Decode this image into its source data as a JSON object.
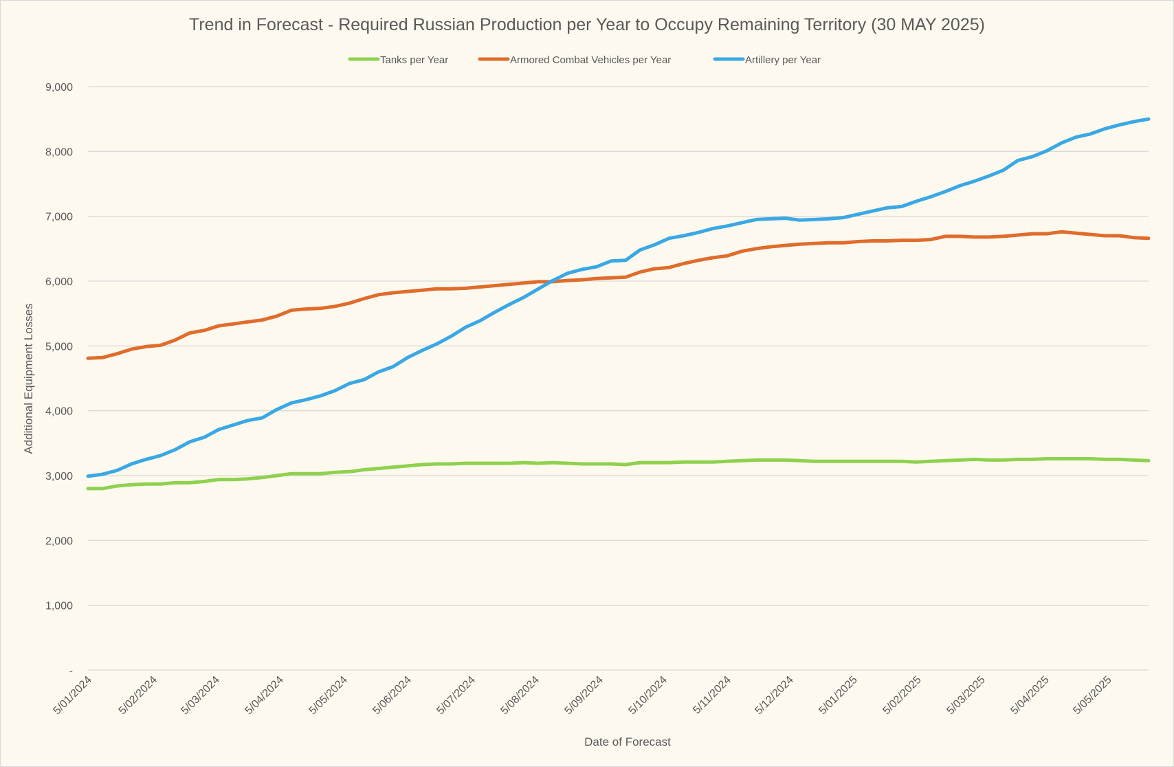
{
  "chart_data": {
    "type": "line",
    "title": "Trend in Forecast - Required Russian Production per Year to Occupy Remaining Territory (30 MAY 2025)",
    "xlabel": "Date of Forecast",
    "ylabel": "Additional Equipment Losses",
    "ylim": [
      0,
      9000
    ],
    "y_ticks": [
      0,
      1000,
      2000,
      3000,
      4000,
      5000,
      6000,
      7000,
      8000,
      9000
    ],
    "y_tick_labels": [
      "-",
      "1,000",
      "2,000",
      "3,000",
      "4,000",
      "5,000",
      "6,000",
      "7,000",
      "8,000",
      "9,000"
    ],
    "grid": true,
    "legend_position": "top-center",
    "point_count": 74,
    "x_tick_labels": [
      {
        "index": 0,
        "label": "5/01/2024"
      },
      {
        "index": 4.5,
        "label": "5/02/2024"
      },
      {
        "index": 8.8,
        "label": "5/03/2024"
      },
      {
        "index": 13.2,
        "label": "5/04/2024"
      },
      {
        "index": 17.6,
        "label": "5/05/2024"
      },
      {
        "index": 22,
        "label": "5/06/2024"
      },
      {
        "index": 26.4,
        "label": "5/07/2024"
      },
      {
        "index": 30.8,
        "label": "5/08/2024"
      },
      {
        "index": 35.2,
        "label": "5/09/2024"
      },
      {
        "index": 39.6,
        "label": "5/10/2024"
      },
      {
        "index": 44,
        "label": "5/11/2024"
      },
      {
        "index": 48.3,
        "label": "5/12/2024"
      },
      {
        "index": 52.7,
        "label": "5/01/2025"
      },
      {
        "index": 57.1,
        "label": "5/02/2025"
      },
      {
        "index": 61.5,
        "label": "5/03/2025"
      },
      {
        "index": 65.9,
        "label": "5/04/2025"
      },
      {
        "index": 70.2,
        "label": "5/05/2025"
      }
    ],
    "series": [
      {
        "name": "Tanks per Year",
        "color": "#8fd14f",
        "values": [
          2800,
          2800,
          2840,
          2860,
          2870,
          2870,
          2890,
          2890,
          2910,
          2940,
          2940,
          2950,
          2970,
          3000,
          3030,
          3030,
          3030,
          3050,
          3060,
          3090,
          3110,
          3130,
          3150,
          3170,
          3180,
          3180,
          3190,
          3190,
          3190,
          3190,
          3200,
          3190,
          3200,
          3190,
          3180,
          3180,
          3180,
          3170,
          3200,
          3200,
          3200,
          3210,
          3210,
          3210,
          3220,
          3230,
          3240,
          3240,
          3240,
          3230,
          3220,
          3220,
          3220,
          3220,
          3220,
          3220,
          3220,
          3210,
          3220,
          3230,
          3240,
          3250,
          3240,
          3240,
          3250,
          3250,
          3260,
          3260,
          3260,
          3260,
          3250,
          3250,
          3240,
          3230
        ]
      },
      {
        "name": "Armored Combat Vehicles per Year",
        "color": "#e06c2c",
        "values": [
          4810,
          4820,
          4880,
          4950,
          4990,
          5010,
          5090,
          5200,
          5240,
          5310,
          5340,
          5370,
          5400,
          5460,
          5550,
          5570,
          5580,
          5610,
          5660,
          5730,
          5790,
          5820,
          5840,
          5860,
          5880,
          5880,
          5890,
          5910,
          5930,
          5950,
          5970,
          5990,
          5990,
          6010,
          6020,
          6040,
          6050,
          6060,
          6140,
          6190,
          6210,
          6270,
          6320,
          6360,
          6390,
          6460,
          6500,
          6530,
          6550,
          6570,
          6580,
          6590,
          6590,
          6610,
          6620,
          6620,
          6630,
          6630,
          6640,
          6690,
          6690,
          6680,
          6680,
          6690,
          6710,
          6730,
          6730,
          6760,
          6740,
          6720,
          6700,
          6700,
          6670,
          6660
        ]
      },
      {
        "name": "Artillery per Year",
        "color": "#3aa8e4",
        "values": [
          2990,
          3020,
          3080,
          3180,
          3250,
          3310,
          3400,
          3520,
          3590,
          3710,
          3780,
          3850,
          3890,
          4020,
          4120,
          4170,
          4230,
          4310,
          4420,
          4480,
          4600,
          4680,
          4820,
          4930,
          5030,
          5150,
          5290,
          5390,
          5520,
          5640,
          5750,
          5880,
          6010,
          6120,
          6180,
          6220,
          6310,
          6320,
          6480,
          6560,
          6660,
          6700,
          6750,
          6810,
          6850,
          6900,
          6950,
          6960,
          6970,
          6940,
          6950,
          6960,
          6980,
          7030,
          7080,
          7130,
          7150,
          7230,
          7300,
          7380,
          7470,
          7540,
          7620,
          7710,
          7860,
          7920,
          8010,
          8130,
          8220,
          8270,
          8350,
          8410,
          8460,
          8500
        ]
      }
    ]
  }
}
